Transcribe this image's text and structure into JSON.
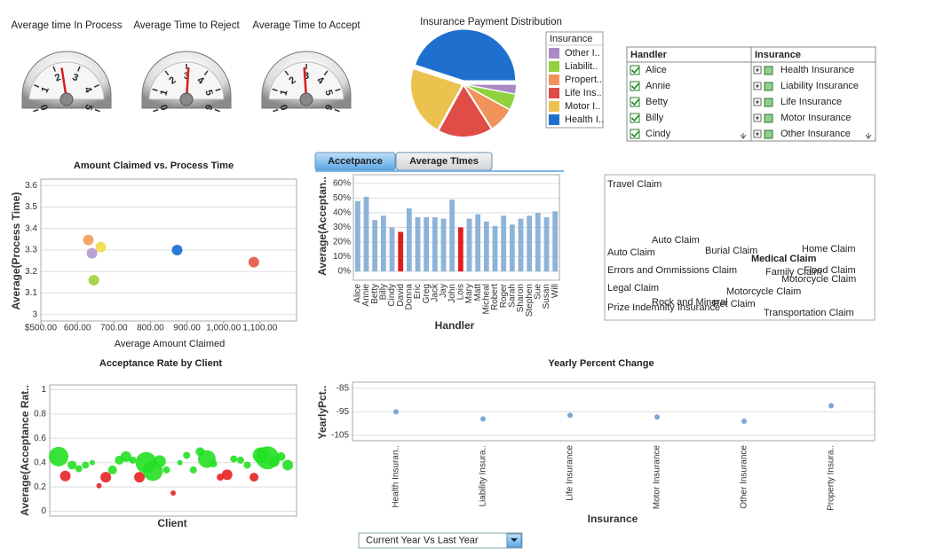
{
  "chart_data": [
    {
      "type": "gauge",
      "title": "Average time In Process",
      "min": 0,
      "max": 5,
      "ticks": [
        0,
        1,
        2,
        3,
        4,
        5
      ],
      "value": 2.3
    },
    {
      "type": "gauge",
      "title": "Average Time to Reject",
      "min": 0,
      "max": 6,
      "ticks": [
        0,
        1,
        2,
        3,
        4,
        5,
        6
      ],
      "value": 3.1
    },
    {
      "type": "gauge",
      "title": "Average Time to Accept",
      "min": 0,
      "max": 6,
      "ticks": [
        0,
        1,
        2,
        3,
        4,
        5,
        6
      ],
      "value": 2.9
    },
    {
      "type": "pie",
      "title": "Insurance Payment Distribution",
      "legend_title": "Insurance",
      "categories": [
        "Other I..",
        "Liabilit..",
        "Propert..",
        "Life Ins..",
        "Motor I..",
        "Health I.."
      ],
      "values": [
        3,
        5,
        8,
        17,
        22,
        45
      ],
      "colors": [
        "#a98ac4",
        "#8fd13f",
        "#f0935a",
        "#e04c46",
        "#ecc24f",
        "#1f6fce"
      ]
    },
    {
      "type": "scatter",
      "title": "Amount Claimed vs. Process Time",
      "x_label": "Average Amount Claimed",
      "y_label": "Average(Process Time)",
      "x": [
        630,
        664,
        640,
        645,
        873,
        1083
      ],
      "values": [
        3.347,
        3.314,
        3.285,
        3.16,
        3.3,
        3.244
      ],
      "colors": [
        "#f2a86b",
        "#f1e05a",
        "#b9a1d6",
        "#a6d64f",
        "#2a7bd6",
        "#e8635a"
      ],
      "xlim": [
        500,
        1200
      ],
      "ylim": [
        2.97,
        3.63
      ],
      "xticks": [
        {
          "value": 500,
          "label": "$500.00"
        },
        {
          "value": 600,
          "label": "600.00"
        },
        {
          "value": 700,
          "label": "700.00"
        },
        {
          "value": 800,
          "label": "800.00"
        },
        {
          "value": 900,
          "label": "900.00"
        },
        {
          "value": 1000,
          "label": "1,000.00"
        },
        {
          "value": 1100,
          "label": "1,100.00"
        }
      ],
      "yticks": [
        3,
        3.1,
        3.2,
        3.3,
        3.4,
        3.5,
        3.6
      ],
      "grid": true
    },
    {
      "type": "bar",
      "x_label": "Handler",
      "y_label": "Average(Acceptan..",
      "categories": [
        "Alice",
        "Annie",
        "Betty",
        "Billy",
        "Cindy",
        "David",
        "Donna",
        "Eric",
        "Greg",
        "Jack",
        "Jay",
        "John",
        "Lois",
        "Mary",
        "Matt",
        "Micheal",
        "Robert",
        "Roger",
        "Sarah",
        "Sharon",
        "Stephen",
        "Sue",
        "Susan",
        "Will"
      ],
      "values": [
        48,
        51,
        35,
        38,
        30,
        27,
        43,
        37,
        37,
        37,
        36,
        49,
        30,
        36,
        39,
        34,
        31,
        38,
        32,
        36,
        38,
        40,
        37,
        41
      ],
      "colors": [
        "#8db3d9",
        "#8db3d9",
        "#8db3d9",
        "#8db3d9",
        "#8db3d9",
        "#e01e1e",
        "#8db3d9",
        "#8db3d9",
        "#8db3d9",
        "#8db3d9",
        "#8db3d9",
        "#8db3d9",
        "#e01e1e",
        "#8db3d9",
        "#8db3d9",
        "#8db3d9",
        "#8db3d9",
        "#8db3d9",
        "#8db3d9",
        "#8db3d9",
        "#8db3d9",
        "#8db3d9",
        "#8db3d9",
        "#8db3d9"
      ],
      "ylim": [
        -6,
        66
      ],
      "yticks": [
        {
          "value": 0,
          "label": "0%"
        },
        {
          "value": 10,
          "label": "10%"
        },
        {
          "value": 20,
          "label": "20%"
        },
        {
          "value": 30,
          "label": "30%"
        },
        {
          "value": 40,
          "label": "40%"
        },
        {
          "value": 50,
          "label": "50%"
        },
        {
          "value": 60,
          "label": "60%"
        }
      ],
      "grid": true
    },
    {
      "type": "bubble",
      "title": "Acceptance Rate by Client",
      "x_label": "Client",
      "y_label": "Average(Acceptance Rat..",
      "categories": [
        null,
        null,
        null,
        null,
        null,
        null,
        null,
        null,
        null,
        null,
        null,
        null,
        null,
        null,
        null,
        null,
        null,
        null,
        null,
        null,
        null,
        null,
        null,
        null,
        null,
        null,
        null,
        null,
        null,
        null,
        null,
        null,
        null,
        null,
        null
      ],
      "values": [
        0.45,
        0.29,
        0.38,
        0.35,
        0.38,
        0.4,
        0.21,
        0.28,
        0.34,
        0.42,
        0.45,
        0.42,
        0.28,
        0.4,
        0.33,
        0.41,
        0.34,
        0.15,
        0.4,
        0.46,
        0.34,
        0.49,
        0.43,
        0.39,
        0.28,
        0.3,
        0.43,
        0.42,
        0.38,
        0.28,
        0.46,
        0.44,
        0.41,
        0.45,
        0.38
      ],
      "sizes": [
        11,
        6,
        5,
        4,
        4,
        3,
        3,
        6,
        5,
        5,
        6,
        4,
        6,
        12,
        11,
        7,
        4,
        3,
        3,
        4,
        4,
        5,
        10,
        4,
        4,
        6,
        4,
        4,
        4,
        5,
        9,
        13,
        6,
        5,
        6
      ],
      "colors": [
        "#22e022",
        "#e62222",
        "#22e022",
        "#22e022",
        "#22e022",
        "#22e022",
        "#e62222",
        "#e62222",
        "#22e022",
        "#22e022",
        "#22e022",
        "#22e022",
        "#e62222",
        "#22e022",
        "#22e022",
        "#22e022",
        "#22e022",
        "#e62222",
        "#22e022",
        "#22e022",
        "#22e022",
        "#22e022",
        "#22e022",
        "#22e022",
        "#e62222",
        "#e62222",
        "#22e022",
        "#22e022",
        "#22e022",
        "#e62222",
        "#22e022",
        "#22e022",
        "#22e022",
        "#22e022",
        "#22e022"
      ],
      "ylim": [
        -0.04,
        1.04
      ],
      "yticks": [
        0,
        0.2,
        0.4,
        0.6,
        0.8,
        1
      ],
      "grid": true
    },
    {
      "type": "dot",
      "title": "Yearly Percent Change",
      "x_label": "Insurance",
      "y_label": "YearlyPct..",
      "categories": [
        "Health Insuran..",
        "Liability Insura..",
        "Life Insurance",
        "Motor Insurance",
        "Other Insurance",
        "Property Insura.."
      ],
      "values": [
        -95,
        -98,
        -96.5,
        -97.2,
        -99,
        -92.4
      ],
      "color": "#7fa6d6",
      "ylim": [
        -107.3,
        -82.4
      ],
      "yticks": [
        -85,
        -95,
        -105
      ],
      "grid": true
    }
  ],
  "table": {
    "columns": [
      "Handler",
      "Insurance"
    ],
    "rows": [
      [
        "Alice",
        "Health Insurance"
      ],
      [
        "Annie",
        "Liability Insurance"
      ],
      [
        "Betty",
        "Life Insurance"
      ],
      [
        "Billy",
        "Motor Insurance"
      ],
      [
        "Cindy",
        "Other Insurance"
      ]
    ]
  },
  "tabs": [
    "Accetpance",
    "Average TImes"
  ],
  "word_cloud": [
    "Travel Claim",
    "Auto Claim",
    "Burial Claim",
    "Home Claim",
    "Auto Claim",
    "Medical Claim",
    "Errors and Ommissions Claim",
    "Family Claim",
    "Flood Claim",
    "Motorcycle Claim",
    "Legal Claim",
    "Motorcycle Claim",
    "Rock and Mineral",
    "Pet Claim",
    "Prize Indemnity Insurance",
    "Transportation Claim"
  ],
  "dropdown": {
    "selected": "Current Year Vs Last Year"
  }
}
